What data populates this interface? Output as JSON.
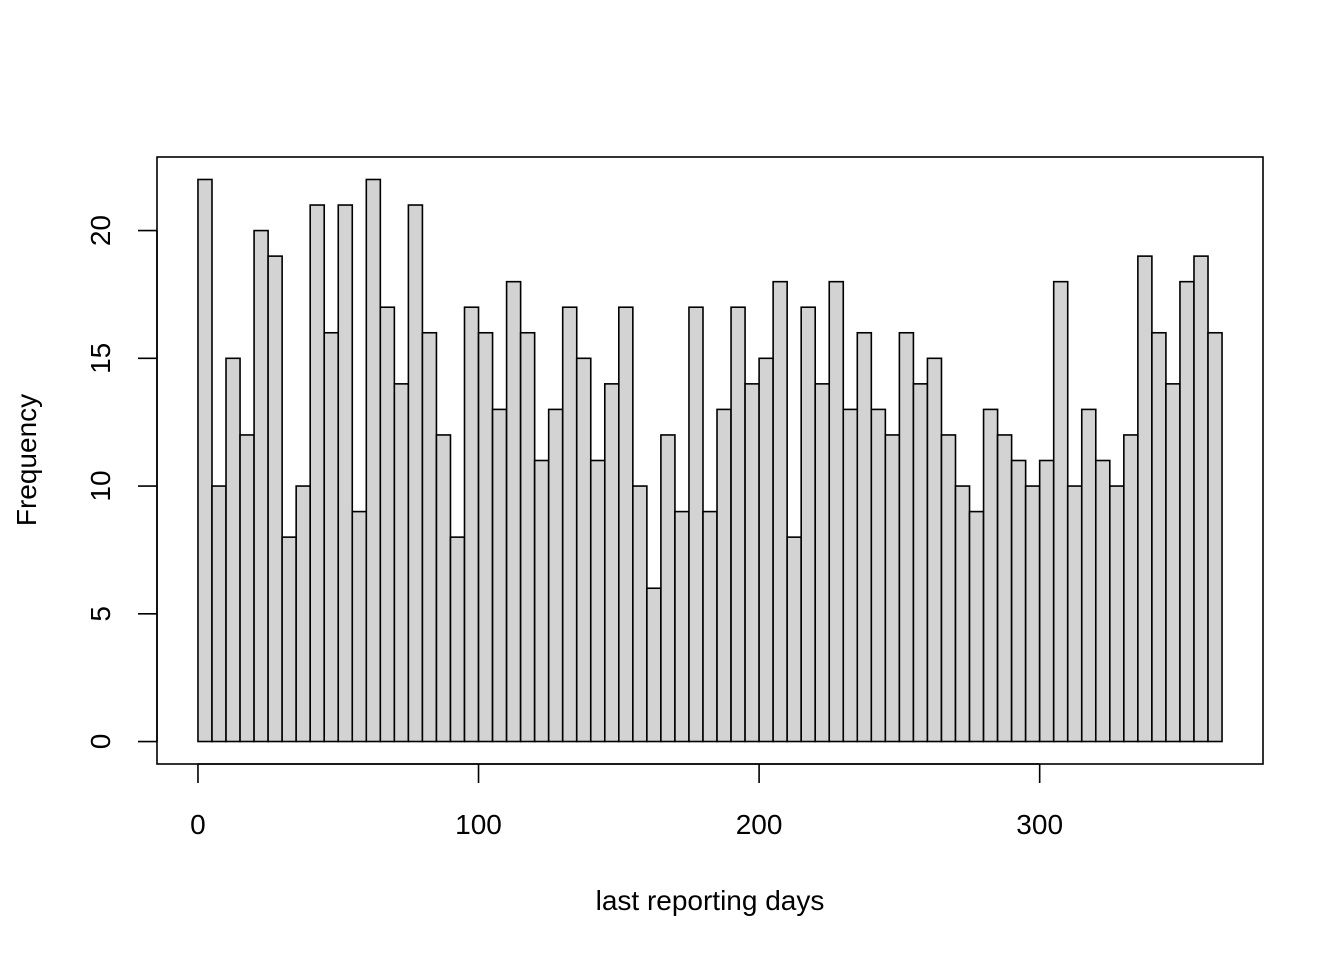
{
  "chart_data": {
    "type": "bar",
    "title": "",
    "xlabel": "last reporting days",
    "ylabel": "Frequency",
    "bin_width": 5,
    "bin_start": 0,
    "values": [
      22,
      10,
      15,
      12,
      20,
      19,
      8,
      10,
      21,
      16,
      21,
      9,
      22,
      17,
      14,
      21,
      16,
      12,
      8,
      17,
      16,
      13,
      18,
      16,
      11,
      13,
      17,
      15,
      11,
      14,
      17,
      10,
      6,
      12,
      9,
      17,
      9,
      13,
      17,
      14,
      15,
      18,
      8,
      17,
      14,
      18,
      13,
      16,
      13,
      12,
      16,
      14,
      15,
      12,
      10,
      9,
      13,
      12,
      11,
      10,
      11,
      18,
      10,
      13,
      11,
      10,
      12,
      19,
      16,
      14,
      18,
      19,
      16
    ],
    "xticks": [
      0,
      100,
      200,
      300
    ],
    "yticks": [
      0,
      5,
      10,
      15,
      20
    ],
    "xlim": [
      -14.6,
      379.6
    ],
    "ylim": [
      -0.88,
      22.88
    ],
    "bar_fill": "#d3d3d3",
    "bar_stroke": "#000000",
    "grid": false,
    "legend": "none"
  }
}
